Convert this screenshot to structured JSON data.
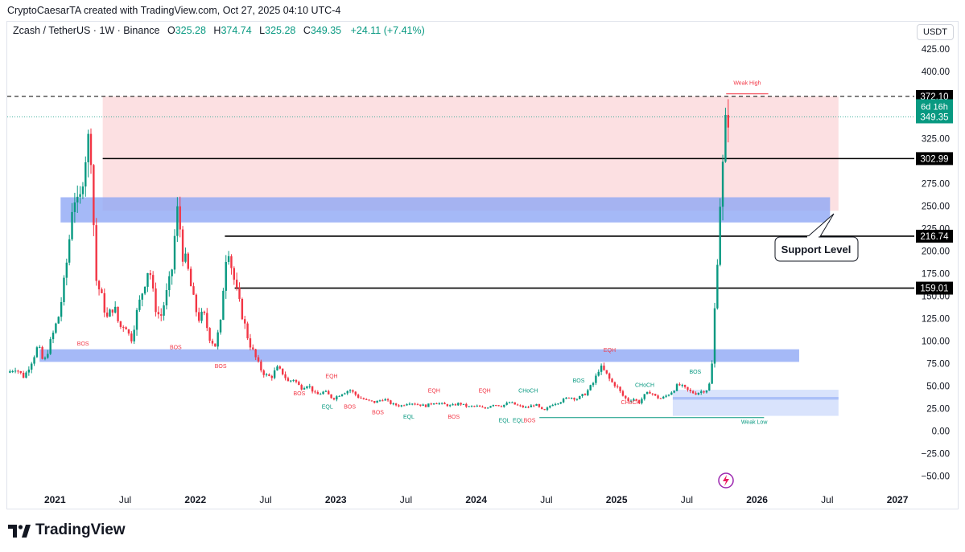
{
  "header": {
    "created_text": "CryptoCaesarTA created with TradingView.com, Oct 27, 2025 04:10 UTC-4"
  },
  "legend": {
    "symbol": "Zcash / TetherUS · 1W · Binance",
    "open_label": "O",
    "open": "325.28",
    "high_label": "H",
    "high": "374.74",
    "low_label": "L",
    "low": "325.28",
    "close_label": "C",
    "close": "349.35",
    "change": "+24.11 (+7.41%)"
  },
  "axis": {
    "unit": "USDT"
  },
  "footer": {
    "brand": "TradingView"
  },
  "colors": {
    "up": "#089981",
    "down": "#f23645",
    "supply_zone": "#fbd5d8",
    "demand_zone": "#8fa8f5",
    "light_zone": "#cfdcfb",
    "label_black": "#000000",
    "price_green": "#089981"
  },
  "chart_data": {
    "type": "candlestick",
    "y_ticks": [
      "425.00",
      "400.00",
      "375.00",
      "350.00",
      "325.00",
      "300.00",
      "275.00",
      "250.00",
      "225.00",
      "200.00",
      "175.00",
      "150.00",
      "125.00",
      "100.00",
      "75.00",
      "50.00",
      "25.00",
      "0.00",
      "−25.00",
      "−50.00"
    ],
    "y_tick_values": [
      425,
      400,
      375,
      350,
      325,
      300,
      275,
      250,
      225,
      200,
      175,
      150,
      125,
      100,
      75,
      50,
      25,
      0,
      -25,
      -50
    ],
    "ylim": [
      -62,
      440
    ],
    "x_ticks": [
      {
        "label": "2021",
        "t": 2021.0,
        "bold": true
      },
      {
        "label": "Jul",
        "t": 2021.5,
        "bold": false
      },
      {
        "label": "2022",
        "t": 2022.0,
        "bold": true
      },
      {
        "label": "Jul",
        "t": 2022.5,
        "bold": false
      },
      {
        "label": "2023",
        "t": 2023.0,
        "bold": true
      },
      {
        "label": "Jul",
        "t": 2023.5,
        "bold": false
      },
      {
        "label": "2024",
        "t": 2024.0,
        "bold": true
      },
      {
        "label": "Jul",
        "t": 2024.5,
        "bold": false
      },
      {
        "label": "2025",
        "t": 2025.0,
        "bold": true
      },
      {
        "label": "Jul",
        "t": 2025.5,
        "bold": false
      },
      {
        "label": "2026",
        "t": 2026.0,
        "bold": true
      },
      {
        "label": "Jul",
        "t": 2026.5,
        "bold": false
      },
      {
        "label": "2027",
        "t": 2027.0,
        "bold": true
      }
    ],
    "xlim": [
      2020.66,
      2027.12
    ],
    "price_path": [
      [
        2020.66,
        65
      ],
      [
        2020.72,
        70
      ],
      [
        2020.78,
        60
      ],
      [
        2020.84,
        80
      ],
      [
        2020.88,
        95
      ],
      [
        2020.92,
        75
      ],
      [
        2020.98,
        105
      ],
      [
        2021.03,
        130
      ],
      [
        2021.07,
        170
      ],
      [
        2021.1,
        210
      ],
      [
        2021.13,
        265
      ],
      [
        2021.17,
        245
      ],
      [
        2021.21,
        300
      ],
      [
        2021.25,
        335
      ],
      [
        2021.29,
        170
      ],
      [
        2021.33,
        150
      ],
      [
        2021.37,
        125
      ],
      [
        2021.42,
        140
      ],
      [
        2021.46,
        115
      ],
      [
        2021.5,
        120
      ],
      [
        2021.54,
        100
      ],
      [
        2021.58,
        130
      ],
      [
        2021.63,
        160
      ],
      [
        2021.67,
        185
      ],
      [
        2021.71,
        140
      ],
      [
        2021.75,
        125
      ],
      [
        2021.79,
        150
      ],
      [
        2021.83,
        175
      ],
      [
        2021.86,
        230
      ],
      [
        2021.88,
        255
      ],
      [
        2021.9,
        200
      ],
      [
        2021.94,
        185
      ],
      [
        2021.98,
        150
      ],
      [
        2022.02,
        125
      ],
      [
        2022.06,
        130
      ],
      [
        2022.1,
        105
      ],
      [
        2022.14,
        95
      ],
      [
        2022.18,
        120
      ],
      [
        2022.21,
        185
      ],
      [
        2022.23,
        210
      ],
      [
        2022.26,
        180
      ],
      [
        2022.3,
        150
      ],
      [
        2022.34,
        125
      ],
      [
        2022.38,
        100
      ],
      [
        2022.42,
        85
      ],
      [
        2022.46,
        70
      ],
      [
        2022.5,
        62
      ],
      [
        2022.54,
        60
      ],
      [
        2022.58,
        70
      ],
      [
        2022.62,
        65
      ],
      [
        2022.66,
        55
      ],
      [
        2022.7,
        58
      ],
      [
        2022.75,
        48
      ],
      [
        2022.8,
        52
      ],
      [
        2022.86,
        40
      ],
      [
        2022.92,
        44
      ],
      [
        2022.98,
        36
      ],
      [
        2023.04,
        42
      ],
      [
        2023.1,
        46
      ],
      [
        2023.16,
        38
      ],
      [
        2023.22,
        34
      ],
      [
        2023.28,
        32
      ],
      [
        2023.34,
        36
      ],
      [
        2023.4,
        30
      ],
      [
        2023.46,
        28
      ],
      [
        2023.52,
        32
      ],
      [
        2023.58,
        30
      ],
      [
        2023.64,
        28
      ],
      [
        2023.7,
        32
      ],
      [
        2023.76,
        30
      ],
      [
        2023.82,
        28
      ],
      [
        2023.88,
        31
      ],
      [
        2023.94,
        27
      ],
      [
        2024.0,
        28
      ],
      [
        2024.06,
        25
      ],
      [
        2024.12,
        30
      ],
      [
        2024.18,
        28
      ],
      [
        2024.24,
        32
      ],
      [
        2024.3,
        28
      ],
      [
        2024.36,
        26
      ],
      [
        2024.42,
        30
      ],
      [
        2024.48,
        22
      ],
      [
        2024.54,
        30
      ],
      [
        2024.6,
        33
      ],
      [
        2024.66,
        38
      ],
      [
        2024.72,
        36
      ],
      [
        2024.78,
        42
      ],
      [
        2024.84,
        55
      ],
      [
        2024.88,
        72
      ],
      [
        2024.92,
        65
      ],
      [
        2024.96,
        55
      ],
      [
        2025.0,
        50
      ],
      [
        2025.04,
        40
      ],
      [
        2025.08,
        34
      ],
      [
        2025.12,
        36
      ],
      [
        2025.16,
        32
      ],
      [
        2025.2,
        40
      ],
      [
        2025.24,
        44
      ],
      [
        2025.28,
        38
      ],
      [
        2025.32,
        36
      ],
      [
        2025.36,
        40
      ],
      [
        2025.4,
        45
      ],
      [
        2025.44,
        52
      ],
      [
        2025.48,
        48
      ],
      [
        2025.52,
        44
      ],
      [
        2025.56,
        42
      ],
      [
        2025.6,
        44
      ],
      [
        2025.64,
        46
      ],
      [
        2025.66,
        52
      ],
      [
        2025.68,
        75
      ],
      [
        2025.7,
        140
      ],
      [
        2025.72,
        200
      ],
      [
        2025.74,
        265
      ],
      [
        2025.76,
        300
      ],
      [
        2025.78,
        352
      ],
      [
        2025.8,
        349.35
      ]
    ],
    "zones": [
      {
        "kind": "supply",
        "t0": 2021.34,
        "t1": 2026.58,
        "y0": 245,
        "y1": 372.1
      },
      {
        "kind": "demand",
        "t0": 2021.04,
        "t1": 2026.52,
        "y0": 232,
        "y1": 260
      },
      {
        "kind": "demand",
        "t0": 2020.89,
        "t1": 2026.3,
        "y0": 77,
        "y1": 91
      },
      {
        "kind": "light",
        "t0": 2025.4,
        "t1": 2026.58,
        "y0": 17,
        "y1": 46
      },
      {
        "kind": "demand_line",
        "t0": 2025.4,
        "t1": 2026.58,
        "y0": 35,
        "y1": 38
      }
    ],
    "levels": [
      {
        "value": 372.1,
        "label": "372.10",
        "t0": 2020.66,
        "style": "dashed"
      },
      {
        "value": 302.99,
        "label": "302.99",
        "t0": 2021.34,
        "style": "solid"
      },
      {
        "value": 216.74,
        "label": "216.74",
        "t0": 2022.21,
        "style": "solid"
      },
      {
        "value": 159.01,
        "label": "159.01",
        "t0": 2022.28,
        "style": "solid"
      }
    ],
    "current_price": {
      "value": "349.35",
      "countdown": "6d 16h"
    },
    "annotations": [
      {
        "text": "Support Level",
        "kind": "callout"
      },
      {
        "text": "Weak High",
        "t": 2025.93,
        "y": 385,
        "color": "#f23645"
      },
      {
        "text": "Weak Low",
        "t": 2025.98,
        "y": 8,
        "color": "#089981"
      },
      {
        "text": "BOS",
        "t": 2021.2,
        "y": 95,
        "color": "#f23645"
      },
      {
        "text": "BOS",
        "t": 2021.86,
        "y": 91,
        "color": "#f23645"
      },
      {
        "text": "BOS",
        "t": 2022.18,
        "y": 70,
        "color": "#f23645"
      },
      {
        "text": "BOS",
        "t": 2022.74,
        "y": 40,
        "color": "#f23645"
      },
      {
        "text": "EQH",
        "t": 2022.97,
        "y": 59,
        "color": "#f23645"
      },
      {
        "text": "EQL",
        "t": 2022.94,
        "y": 25,
        "color": "#089981"
      },
      {
        "text": "BOS",
        "t": 2023.1,
        "y": 25,
        "color": "#f23645"
      },
      {
        "text": "BOS",
        "t": 2023.3,
        "y": 19,
        "color": "#f23645"
      },
      {
        "text": "EQL",
        "t": 2023.52,
        "y": 14,
        "color": "#089981"
      },
      {
        "text": "EQH",
        "t": 2023.7,
        "y": 43,
        "color": "#f23645"
      },
      {
        "text": "BOS",
        "t": 2023.84,
        "y": 14,
        "color": "#f23645"
      },
      {
        "text": "EQH",
        "t": 2024.06,
        "y": 43,
        "color": "#f23645"
      },
      {
        "text": "EQL",
        "t": 2024.2,
        "y": 10,
        "color": "#089981"
      },
      {
        "text": "EQL",
        "t": 2024.3,
        "y": 10,
        "color": "#089981"
      },
      {
        "text": "BOS",
        "t": 2024.38,
        "y": 10,
        "color": "#f23645"
      },
      {
        "text": "CHoCH",
        "t": 2024.37,
        "y": 43,
        "color": "#089981"
      },
      {
        "text": "BOS",
        "t": 2024.73,
        "y": 54,
        "color": "#089981"
      },
      {
        "text": "EQH",
        "t": 2024.95,
        "y": 88,
        "color": "#f23645"
      },
      {
        "text": "CHoCH",
        "t": 2025.2,
        "y": 49,
        "color": "#089981"
      },
      {
        "text": "CHoCH",
        "t": 2025.1,
        "y": 30,
        "color": "#f23645"
      },
      {
        "text": "BOS",
        "t": 2025.56,
        "y": 64,
        "color": "#089981"
      }
    ]
  }
}
